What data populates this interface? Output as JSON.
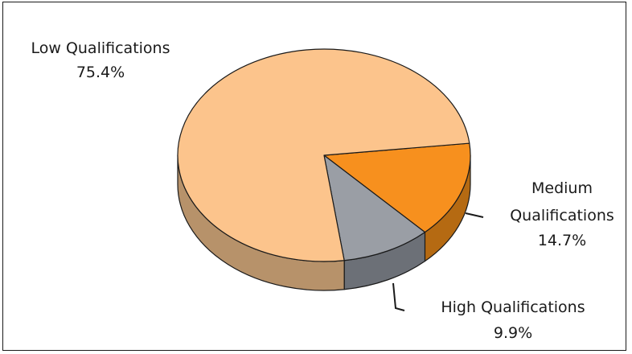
{
  "chart_data": {
    "type": "pie",
    "style": "3d",
    "title": "",
    "slices": [
      {
        "label": "Low Qualifications",
        "value": 75.4,
        "value_label": "75.4%",
        "color": "#FCC48C",
        "side_color": "#B7926A"
      },
      {
        "label": "Medium Qualifications",
        "value": 14.7,
        "value_label": "14.7%",
        "color": "#F7901E",
        "side_color": "#B56A12"
      },
      {
        "label": "High Qualifications",
        "value": 9.9,
        "value_label": "9.9%",
        "color": "#9A9EA5",
        "side_color": "#6C7077"
      }
    ],
    "label_lines": {
      "low": [
        "Low Qualifications",
        "75.4%"
      ],
      "medium": [
        "Medium",
        "Qualifications",
        "14.7%"
      ],
      "high": [
        "High Qualifications",
        "9.9%"
      ]
    }
  }
}
